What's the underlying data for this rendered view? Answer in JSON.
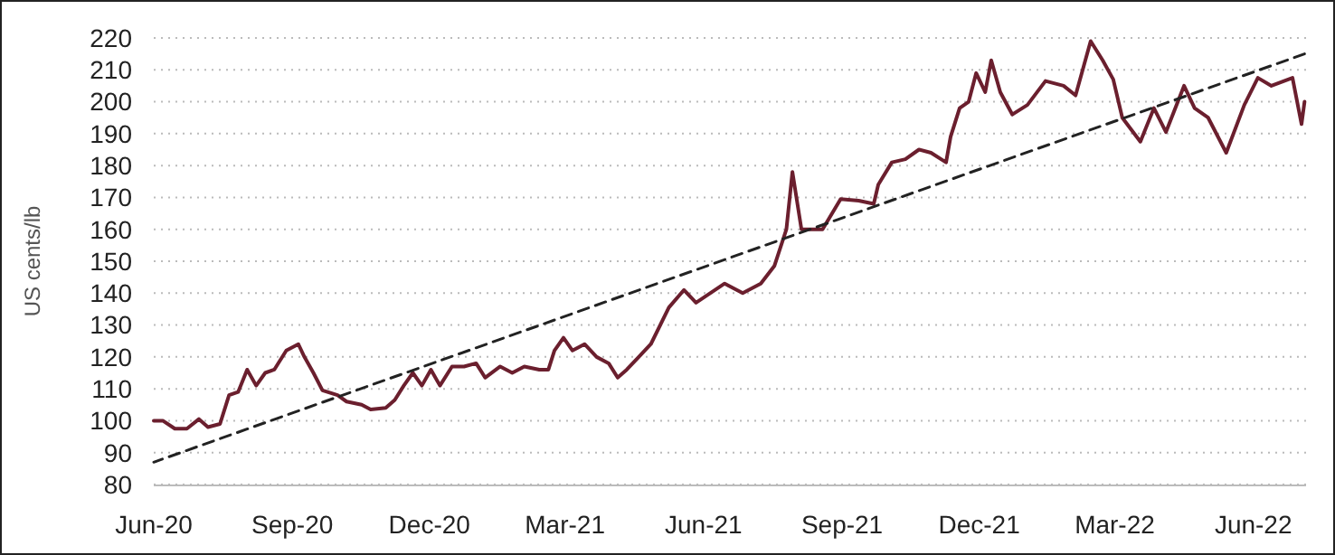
{
  "chart_data": {
    "type": "line",
    "ylabel": "US cents/lb",
    "x": [
      "2020-06-01",
      "2020-06-07",
      "2020-06-15",
      "2020-06-23",
      "2020-07-01",
      "2020-07-07",
      "2020-07-15",
      "2020-07-21",
      "2020-07-27",
      "2020-08-02",
      "2020-08-08",
      "2020-08-14",
      "2020-08-20",
      "2020-08-28",
      "2020-09-05",
      "2020-09-09",
      "2020-09-15",
      "2020-09-21",
      "2020-10-01",
      "2020-10-07",
      "2020-10-17",
      "2020-10-23",
      "2020-11-02",
      "2020-11-08",
      "2020-11-14",
      "2020-11-20",
      "2020-11-26",
      "2020-12-02",
      "2020-12-08",
      "2020-12-16",
      "2020-12-24",
      "2021-01-01",
      "2021-01-07",
      "2021-01-17",
      "2021-01-25",
      "2021-02-02",
      "2021-02-12",
      "2021-02-18",
      "2021-02-22",
      "2021-02-28",
      "2021-03-06",
      "2021-03-14",
      "2021-03-22",
      "2021-03-30",
      "2021-04-05",
      "2021-04-11",
      "2021-04-19",
      "2021-04-27",
      "2021-05-09",
      "2021-05-19",
      "2021-05-27",
      "2021-06-15",
      "2021-06-27",
      "2021-07-09",
      "2021-07-18",
      "2021-07-26",
      "2021-07-30",
      "2021-08-05",
      "2021-08-19",
      "2021-08-31",
      "2021-09-12",
      "2021-09-22",
      "2021-09-25",
      "2021-10-04",
      "2021-10-13",
      "2021-10-22",
      "2021-10-30",
      "2021-11-09",
      "2021-11-12",
      "2021-11-18",
      "2021-11-24",
      "2021-11-29",
      "2021-12-05",
      "2021-12-09",
      "2021-12-15",
      "2021-12-23",
      "2022-01-02",
      "2022-01-14",
      "2022-01-26",
      "2022-02-03",
      "2022-02-13",
      "2022-02-21",
      "2022-02-28",
      "2022-03-06",
      "2022-03-18",
      "2022-03-27",
      "2022-04-04",
      "2022-04-16",
      "2022-04-23",
      "2022-05-02",
      "2022-05-14",
      "2022-05-26",
      "2022-06-04",
      "2022-06-13",
      "2022-06-27",
      "2022-07-03",
      "2022-07-05"
    ],
    "series": [
      {
        "color": "#6b1f2e",
        "line_style": "solid",
        "values": [
          100,
          100,
          97.5,
          97.5,
          100.5,
          98,
          99,
          108,
          109,
          116,
          111,
          115,
          116,
          122,
          124,
          120,
          115,
          109.5,
          108,
          106,
          105,
          103.5,
          104,
          106.5,
          111,
          115,
          111,
          116,
          111,
          117,
          117,
          118,
          113.5,
          117,
          115,
          117,
          116,
          116,
          122,
          126,
          122,
          124,
          120,
          118,
          113.5,
          116,
          120,
          124,
          135.5,
          141,
          137,
          143,
          140,
          143,
          148.5,
          160,
          178,
          160,
          160,
          169.5,
          169,
          168,
          174,
          181,
          182,
          185,
          184,
          181,
          189,
          198,
          200,
          209,
          203,
          213,
          203,
          196,
          199,
          206.5,
          205,
          202,
          219,
          213,
          207,
          195,
          187.5,
          198,
          190.5,
          205,
          198,
          195,
          184,
          199,
          207.5,
          205,
          207.5,
          193,
          200
        ]
      },
      {
        "type": "line",
        "color": "#222222",
        "line_style": "dashed",
        "x": [
          "2020-06-01",
          "2022-07-05"
        ],
        "values": [
          87,
          215
        ]
      }
    ],
    "xlim": [
      "2020-06-01",
      "2022-07-06"
    ],
    "xticks": [
      {
        "value": "2020-06-01",
        "label": "Jun-20"
      },
      {
        "value": "2020-09-01",
        "label": "Sep-20"
      },
      {
        "value": "2020-12-01",
        "label": "Dec-20"
      },
      {
        "value": "2021-03-01",
        "label": "Mar-21"
      },
      {
        "value": "2021-06-01",
        "label": "Jun-21"
      },
      {
        "value": "2021-09-01",
        "label": "Sep-21"
      },
      {
        "value": "2021-12-01",
        "label": "Dec-21"
      },
      {
        "value": "2022-03-01",
        "label": "Mar-22"
      },
      {
        "value": "2022-06-01",
        "label": "Jun-22"
      }
    ],
    "ylim": [
      80,
      220
    ],
    "yticks": [
      80,
      90,
      100,
      110,
      120,
      130,
      140,
      150,
      160,
      170,
      180,
      190,
      200,
      210,
      220
    ],
    "grid": "y"
  }
}
